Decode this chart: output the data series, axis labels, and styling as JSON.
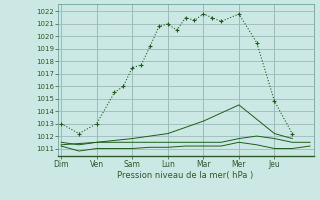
{
  "background_color": "#cce8e4",
  "grid_color": "#99bbbb",
  "line_color": "#1a5e1a",
  "x_labels": [
    "Dim",
    "Ven",
    "Sam",
    "Lun",
    "Mar",
    "Mer",
    "Jeu"
  ],
  "xlabel": "Pression niveau de la mer( hPa )",
  "ylim": [
    1010.4,
    1022.6
  ],
  "yticks": [
    1011,
    1012,
    1013,
    1014,
    1015,
    1016,
    1017,
    1018,
    1019,
    1020,
    1021,
    1022
  ],
  "xlim": [
    -0.1,
    7.1
  ],
  "x_tick_pos": [
    0,
    1,
    2,
    3,
    4,
    5,
    6,
    7
  ],
  "series1_x": [
    0.0,
    0.5,
    1.0,
    1.5,
    1.75,
    2.0,
    2.25,
    2.5,
    2.75,
    3.0,
    3.25,
    3.5,
    3.75,
    4.0,
    4.25,
    4.5,
    5.0,
    5.5,
    6.0,
    6.5
  ],
  "series1_y": [
    1013.0,
    1012.2,
    1013.0,
    1015.5,
    1016.0,
    1017.5,
    1017.7,
    1019.2,
    1020.8,
    1021.0,
    1020.5,
    1021.5,
    1021.3,
    1021.8,
    1021.5,
    1021.2,
    1021.8,
    1019.5,
    1014.8,
    1012.2
  ],
  "series2_x": [
    0.0,
    0.5,
    1.0,
    1.5,
    2.0,
    2.5,
    3.0,
    3.5,
    4.0,
    4.5,
    5.0,
    5.5,
    6.0,
    6.5,
    7.0
  ],
  "series2_y": [
    1011.5,
    1011.3,
    1011.5,
    1011.5,
    1011.5,
    1011.5,
    1011.5,
    1011.5,
    1011.5,
    1011.5,
    1011.8,
    1012.0,
    1011.8,
    1011.5,
    1011.5
  ],
  "series3_x": [
    0.0,
    0.5,
    1.0,
    1.5,
    2.0,
    2.5,
    3.0,
    3.5,
    4.0,
    4.5,
    5.0,
    5.5,
    6.0,
    6.5,
    7.0
  ],
  "series3_y": [
    1011.2,
    1010.8,
    1011.0,
    1011.0,
    1011.0,
    1011.1,
    1011.1,
    1011.2,
    1011.2,
    1011.2,
    1011.5,
    1011.3,
    1011.0,
    1011.0,
    1011.2
  ],
  "series4_x": [
    0.0,
    1.0,
    2.0,
    3.0,
    4.0,
    5.0,
    6.0,
    6.5
  ],
  "series4_y": [
    1011.3,
    1011.5,
    1011.8,
    1012.2,
    1013.2,
    1014.5,
    1012.2,
    1011.8
  ]
}
